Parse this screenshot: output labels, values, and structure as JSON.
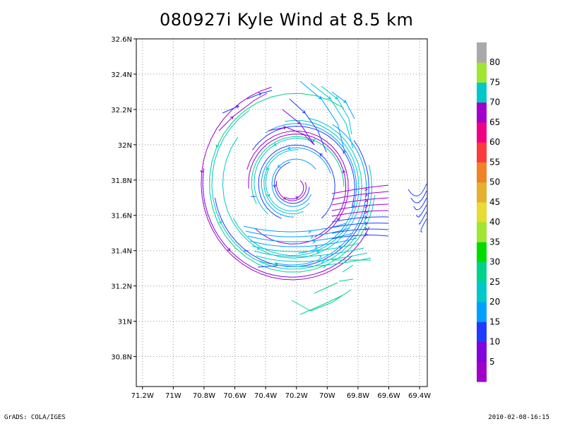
{
  "title": "080927i Kyle Wind at 8.5 km",
  "footer_left": "GrADS: COLA/IGES",
  "footer_right": "2010-02-08-16:15",
  "chart_data": {
    "type": "streamline",
    "title": "080927i Kyle Wind at 8.5 km",
    "x_ticks": [
      "71.2W",
      "71W",
      "70.8W",
      "70.6W",
      "70.4W",
      "70.2W",
      "70W",
      "69.8W",
      "69.6W",
      "69.4W"
    ],
    "y_ticks": [
      "30.8N",
      "31N",
      "31.2N",
      "31.4N",
      "31.6N",
      "31.8N",
      "32N",
      "32.2N",
      "32.4N",
      "32.6N"
    ],
    "xlim": [
      -71.2,
      -69.4
    ],
    "ylim": [
      30.6,
      32.6
    ],
    "grid": true,
    "colorbar": {
      "labels": [
        "5",
        "10",
        "15",
        "20",
        "25",
        "30",
        "35",
        "40",
        "45",
        "50",
        "55",
        "60",
        "65",
        "70",
        "75",
        "80"
      ],
      "colors": [
        "#a000c8",
        "#8200dc",
        "#1e3cff",
        "#00a0ff",
        "#00c8c8",
        "#00d28c",
        "#00dc00",
        "#a0e632",
        "#e6dc32",
        "#e6af2d",
        "#f08228",
        "#fa3c3c",
        "#f00082",
        "#a000c8",
        "#00c8c8",
        "#a0e632",
        "#aaaaaa"
      ]
    }
  }
}
